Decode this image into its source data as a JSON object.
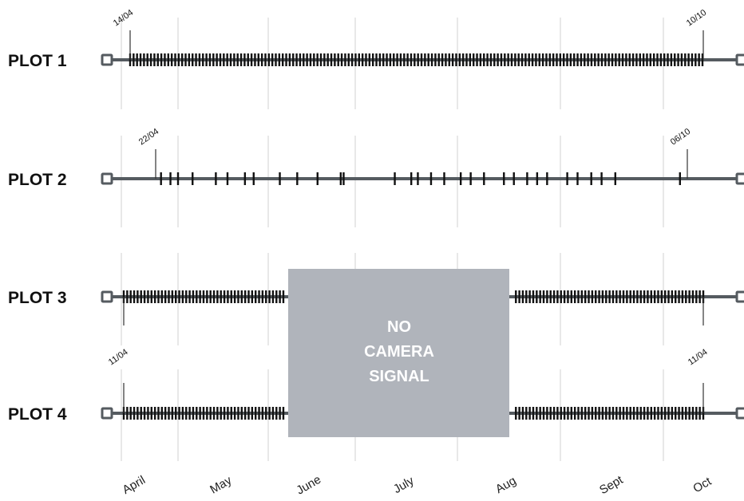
{
  "chart_data": {
    "type": "timeline",
    "year": "",
    "months": [
      "April",
      "May",
      "June",
      "July",
      "Aug",
      "Sept",
      "Oct"
    ],
    "plots": [
      {
        "label": "PLOT 1",
        "start": "14/04",
        "end": "10/10",
        "start_label_pos": "above",
        "end_label_pos": "above",
        "events": "daily",
        "gap": null
      },
      {
        "label": "PLOT 2",
        "start": "22/04",
        "end": "06/10",
        "start_label_pos": "above",
        "end_label_pos": "above",
        "events": [
          "22/04",
          "27/04",
          "01/05",
          "06/05",
          "14/05",
          "18/05",
          "24/05",
          "27/05",
          "05/06",
          "11/06",
          "18/06",
          "26/06",
          "27/06",
          "13/07",
          "18/07",
          "20/07",
          "24/07",
          "28/07",
          "02/08",
          "05/08",
          "09/08",
          "15/08",
          "18/08",
          "22/08",
          "25/08",
          "28/08",
          "03/09",
          "06/09",
          "10/09",
          "13/09",
          "17/09",
          "06/10"
        ],
        "gap": null
      },
      {
        "label": "PLOT 3",
        "start": "11/04",
        "end": "11/04",
        "start_label_pos": "below",
        "end_label_pos": "below",
        "events": "daily",
        "gap": {
          "from": "30/05",
          "to": "06/08"
        }
      },
      {
        "label": "PLOT 4",
        "start": "11/04",
        "end": "11/04",
        "start_label_pos": "none",
        "end_label_pos": "none",
        "events": "daily",
        "gap": {
          "from": "30/05",
          "to": "06/08"
        }
      }
    ],
    "overlay": {
      "lines": [
        "NO",
        "CAMERA",
        "SIGNAL"
      ]
    },
    "colors": {
      "axis": "#555b60",
      "tick": "#111111",
      "grid": "#d2d2d2",
      "overlay": "#b0b4bb"
    }
  }
}
